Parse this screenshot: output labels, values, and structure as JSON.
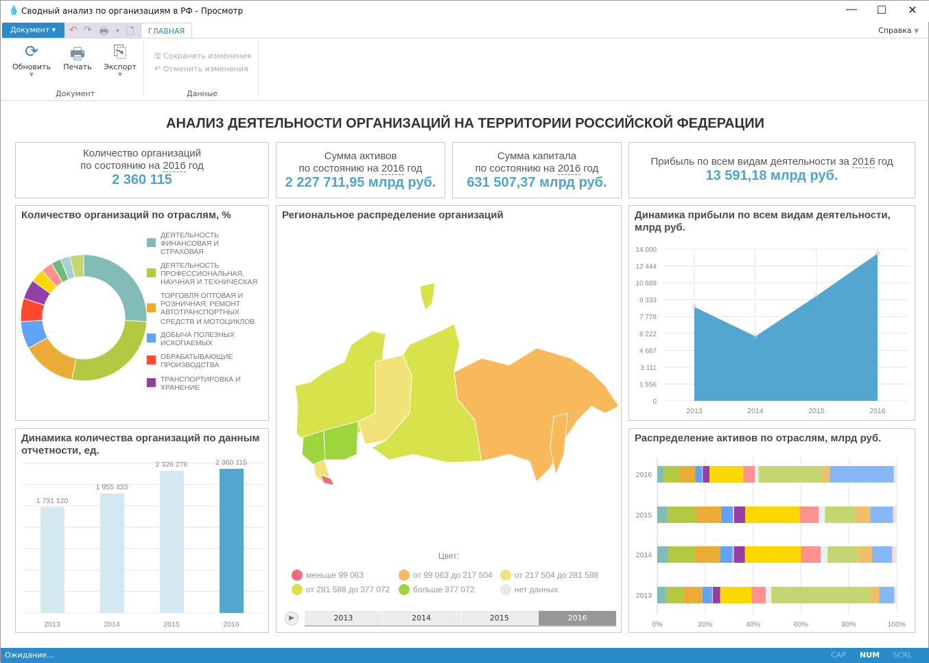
{
  "window": {
    "title": "Сводный анализ по организациям в РФ - Просмотр",
    "minimize": "—",
    "maximize": "☐",
    "close": "✕"
  },
  "ribbon": {
    "document_menu": "Документ",
    "tab_main": "ГЛАВНАЯ",
    "help": "Справка",
    "refresh": "Обновить",
    "print": "Печать",
    "export": "Экспорт",
    "group_document": "Документ",
    "save_changes": "Сохранить изменения",
    "cancel_changes": "Отменить изменения",
    "group_data": "Данные"
  },
  "heading": "АНАЛИЗ ДЕЯТЕЛЬНОСТИ ОРГАНИЗАЦИЙ НА ТЕРРИТОРИИ РОССИЙСКОЙ ФЕДЕРАЦИИ",
  "kpis": [
    {
      "line1": "Количество организаций",
      "pre": "по состоянию на ",
      "year": "2016",
      "post": " год",
      "value": "2 360 115"
    },
    {
      "line1": "Сумма активов",
      "pre": "по состоянию на ",
      "year": "2016",
      "post": " год",
      "value": "2 227 711,95 млрд руб."
    },
    {
      "line1": "Сумма капитала",
      "pre": "по состоянию на ",
      "year": "2016",
      "post": " год",
      "value": "631 507,37 млрд руб."
    },
    {
      "pre": "Прибыль по всем видам деятельности за ",
      "year": "2016",
      "post": " год",
      "value": "13 591,18 млрд руб."
    }
  ],
  "map": {
    "title": "Региональное распределение организаций",
    "legend_title": "Цвет:",
    "legend": [
      {
        "label": "меньше 99 063",
        "color": "#f06a78"
      },
      {
        "label": "от 99 063 до 217 504",
        "color": "#f7b95a"
      },
      {
        "label": "от 217 504 до 281 588",
        "color": "#f2e27a"
      },
      {
        "label": "от 281 588 до 377 072",
        "color": "#d8e24a"
      },
      {
        "label": "больше 377 072",
        "color": "#9cd53c"
      },
      {
        "label": "нет данных",
        "color": "#e8e8e8"
      }
    ],
    "timeline": [
      "2013",
      "2014",
      "2015",
      "2016"
    ],
    "timeline_selected": "2016"
  },
  "status": {
    "text": "Ожидание...",
    "cap": "CAP",
    "num": "NUM",
    "scrl": "SCRL"
  },
  "chart_data": [
    {
      "type": "pie",
      "title": "Количество организаций по отраслям, %",
      "slices": [
        {
          "name": "ДЕЯТЕЛЬНОСТЬ ФИНАНСОВАЯ И СТРАХОВАЯ",
          "value": 26,
          "color": "#82bcb7"
        },
        {
          "name": "ДЕЯТЕЛЬНОСТЬ ПРОФЕССИОНАЛЬНАЯ, НАУЧНАЯ И ТЕХНИЧЕСКАЯ",
          "value": 27,
          "color": "#b3c941"
        },
        {
          "name": "ТОРГОВЛЯ ОПТОВАЯ И РОЗНИЧНАЯ; РЕМОНТ АВТОТРАНСПОРТНЫХ СРЕДСТВ И МОТОЦИКЛОВ",
          "value": 14,
          "color": "#eaab37"
        },
        {
          "name": "ДОБЫЧА ПОЛЕЗНЫХ ИСКОПАЕМЫХ",
          "value": 7,
          "color": "#60a3f5"
        },
        {
          "name": "ОБРАБАТЫВАЮЩИЕ ПРОИЗВОДСТВА",
          "value": 6,
          "color": "#ff4a2e"
        },
        {
          "name": "ТРАНСПОРТИРОВКА И ХРАНЕНИЕ",
          "value": 5,
          "color": "#953ea8"
        },
        {
          "value": 3.5,
          "color": "#fdd800"
        },
        {
          "value": 3,
          "color": "#ff9191"
        },
        {
          "value": 2.5,
          "color": "#6cbd7a"
        },
        {
          "value": 2.5,
          "color": "#a6d1d0"
        },
        {
          "value": 3.5,
          "color": "#c3d672"
        }
      ]
    },
    {
      "type": "area",
      "title": "Динамика прибыли по всем видам деятельности, млрд руб.",
      "categories": [
        "2013",
        "2014",
        "2015",
        "2016"
      ],
      "values": [
        8666,
        5946,
        9678,
        13591.18
      ],
      "ylim": [
        0,
        14000
      ],
      "yticks": [
        "0",
        "1 556",
        "3 111",
        "4 667",
        "6 222",
        "7 778",
        "9 333",
        "10 889",
        "12 444",
        "14 000"
      ],
      "color": "#53a6d0",
      "grid": true
    },
    {
      "type": "bar",
      "title": "Динамика количества организаций по данным отчетности, ед.",
      "categories": [
        "2013",
        "2014",
        "2015",
        "2016"
      ],
      "values": [
        1731120,
        1955433,
        2326276,
        2360115
      ],
      "labels": [
        "1 731 120",
        "1 955 433",
        "2 326 276",
        "2 360 115"
      ],
      "highlight": "2016",
      "color": "#d3e8f1",
      "highlight_color": "#53a6d0",
      "grid": true
    },
    {
      "type": "bar",
      "orientation": "horizontal-stacked-100",
      "title": "Распределение активов по отраслям, млрд руб.",
      "categories": [
        "2016",
        "2015",
        "2014",
        "2013"
      ],
      "xticks": [
        "0%",
        "20%",
        "40%",
        "60%",
        "80%",
        "100%"
      ],
      "colors": [
        "#82bcb7",
        "#b3c941",
        "#eaab37",
        "#60a3f5",
        "#f3c9d6",
        "#953ea8",
        "#fdd800",
        "#ff9191",
        "#e6f2ef",
        "#c3d672",
        "#efbe66",
        "#86b8f8",
        "#ffd0d0",
        "#dcefdc"
      ],
      "series_values": [
        [
          2.6,
          6.7,
          6.6,
          2.8,
          0.3,
          2.8,
          14.1,
          4.9,
          1.5,
          26.5,
          3.4,
          26.5,
          0.5,
          0.8
        ],
        [
          4.2,
          12.0,
          10.6,
          4.8,
          0.5,
          4.6,
          22.9,
          7.8,
          2.6,
          13.0,
          5.9,
          9.5,
          0.8,
          0.8
        ],
        [
          4.6,
          11.3,
          10.4,
          5.2,
          0.5,
          4.6,
          23.4,
          8.3,
          2.8,
          12.9,
          5.7,
          8.3,
          0.8,
          1.2
        ],
        [
          3.7,
          7.4,
          7.8,
          4.0,
          0.3,
          3.1,
          13.0,
          6.0,
          2.3,
          41.3,
          3.8,
          6.2,
          0.5,
          0.6
        ]
      ]
    }
  ]
}
